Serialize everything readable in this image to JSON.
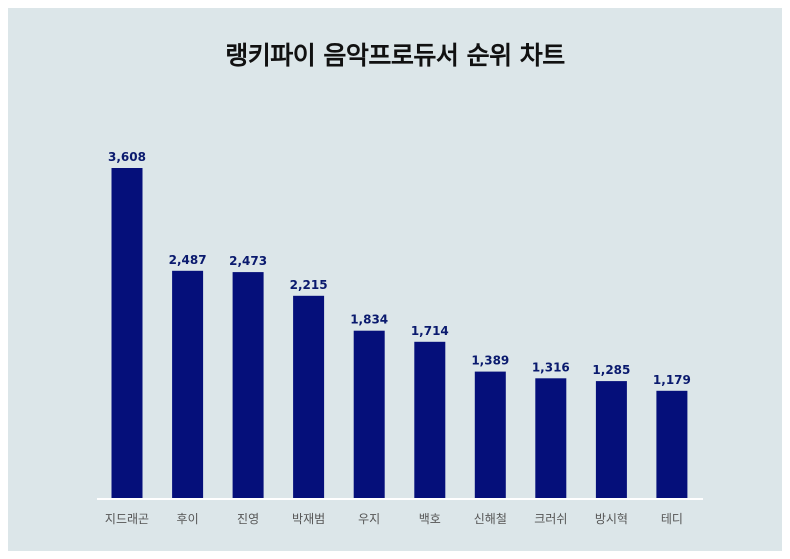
{
  "chart_data": {
    "type": "bar",
    "title": "랭키파이 음악프로듀서 순위 차트",
    "categories": [
      "지드래곤",
      "후이",
      "진영",
      "박재범",
      "우지",
      "백호",
      "신해철",
      "크러쉬",
      "방시혁",
      "테디"
    ],
    "values": [
      3608,
      2487,
      2473,
      2215,
      1834,
      1714,
      1389,
      1316,
      1285,
      1179
    ],
    "value_labels": [
      "3,608",
      "2,487",
      "2,473",
      "2,215",
      "1,834",
      "1,714",
      "1,389",
      "1,316",
      "1,285",
      "1,179"
    ],
    "xlabel": "",
    "ylabel": "",
    "ylim": [
      0,
      3608
    ],
    "grid": false,
    "legend": "none",
    "colors": {
      "bar": "#050f7a",
      "background": "#dce6e9",
      "value_label": "#0a1a6e",
      "category_label": "#555555",
      "baseline": "#ffffff"
    }
  }
}
